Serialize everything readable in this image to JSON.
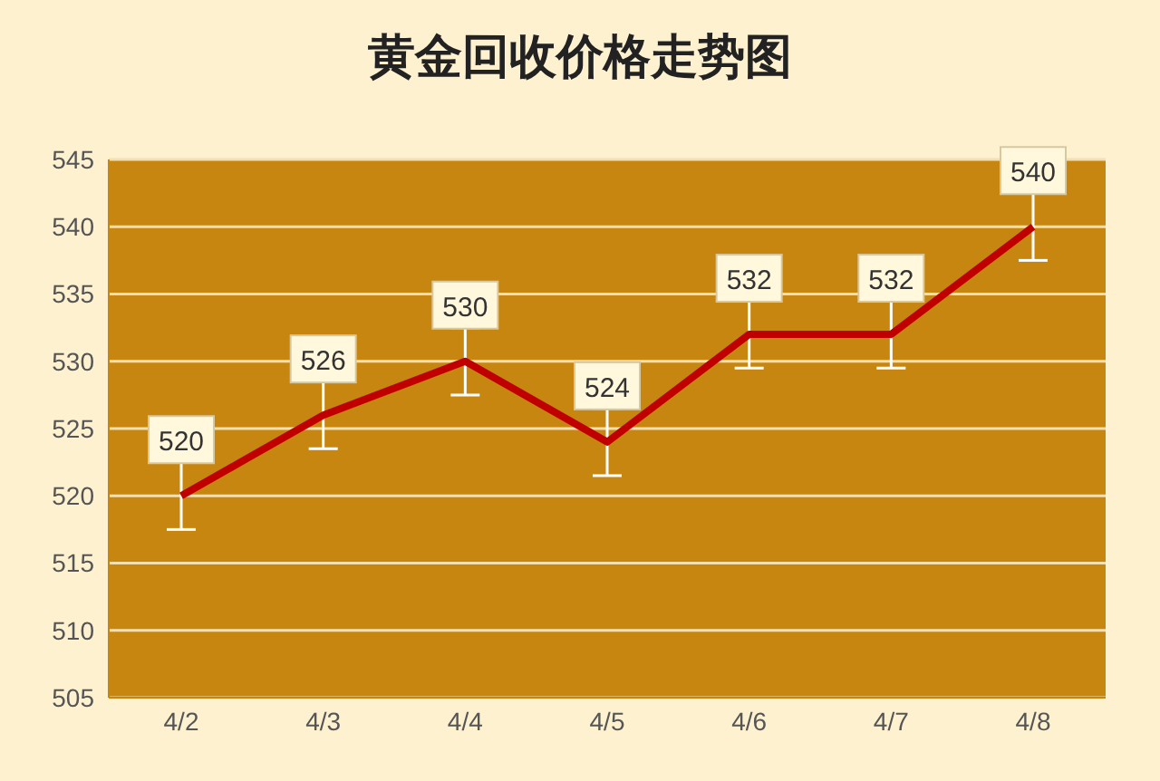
{
  "chart_data": {
    "type": "line",
    "title": "黄金回收价格走势图",
    "categories": [
      "4/2",
      "4/3",
      "4/4",
      "4/5",
      "4/6",
      "4/7",
      "4/8"
    ],
    "series": [
      {
        "color": "#c00000",
        "values": [
          520,
          526,
          530,
          524,
          532,
          532,
          540
        ],
        "errors": [
          2.5,
          2.5,
          2.5,
          2.5,
          2.5,
          2.5,
          2.5
        ]
      }
    ],
    "ylim": [
      505,
      545
    ],
    "yticks": [
      505,
      510,
      515,
      520,
      525,
      530,
      535,
      540,
      545
    ],
    "grid": "y",
    "data_labels": true,
    "marker": "none",
    "line_style": "solid"
  }
}
